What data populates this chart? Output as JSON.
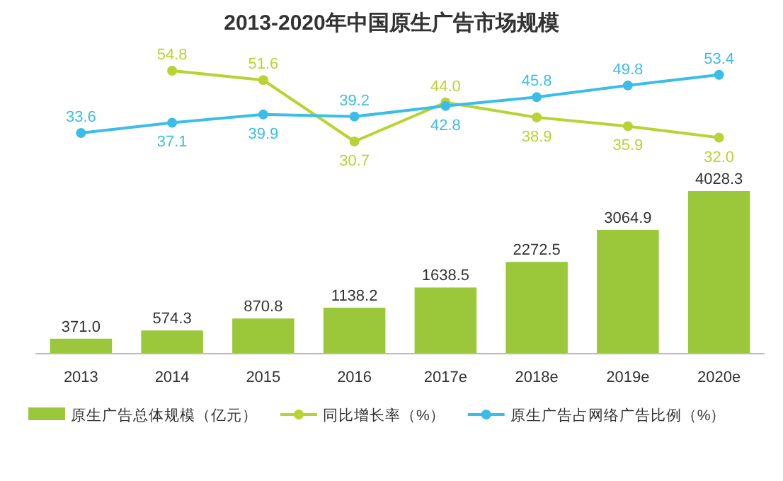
{
  "chart_data": [
    {
      "type": "line",
      "title": "2013-2020年中国原生广告市场规模",
      "categories": [
        null,
        null,
        null,
        null,
        null,
        null,
        null,
        null
      ],
      "series": [
        {
          "name": "同比增长率（%）",
          "color": "#b8d433",
          "values": [
            null,
            54.8,
            51.6,
            30.7,
            44.0,
            38.9,
            35.9,
            32.0
          ],
          "value_labels": [
            null,
            "54.8",
            "51.6",
            "30.7",
            "44.0",
            "38.9",
            "35.9",
            "32.0"
          ]
        },
        {
          "name": "原生广告占网络广告比例（%）",
          "color": "#3cbde9",
          "values": [
            33.6,
            37.1,
            39.9,
            39.2,
            42.8,
            45.8,
            49.8,
            53.4
          ],
          "value_labels": [
            "33.6",
            "37.1",
            "39.9",
            "39.2",
            "42.8",
            "45.8",
            "49.8",
            "53.4"
          ]
        }
      ],
      "marker": "circle",
      "legend": "bottom"
    },
    {
      "type": "bar",
      "categories": [
        "2013",
        "2014",
        "2015",
        "2016",
        "2017e",
        "2018e",
        "2019e",
        "2020e"
      ],
      "series": [
        {
          "name": "原生广告总体规模（亿元）",
          "color": "#9bc83a",
          "values": [
            371.0,
            574.3,
            870.8,
            1138.2,
            1638.5,
            2272.5,
            3064.9,
            4028.3
          ],
          "value_labels": [
            "371.0",
            "574.3",
            "870.8",
            "1138.2",
            "1638.5",
            "2272.5",
            "3064.9",
            "4028.3"
          ]
        }
      ],
      "legend": "bottom"
    }
  ]
}
